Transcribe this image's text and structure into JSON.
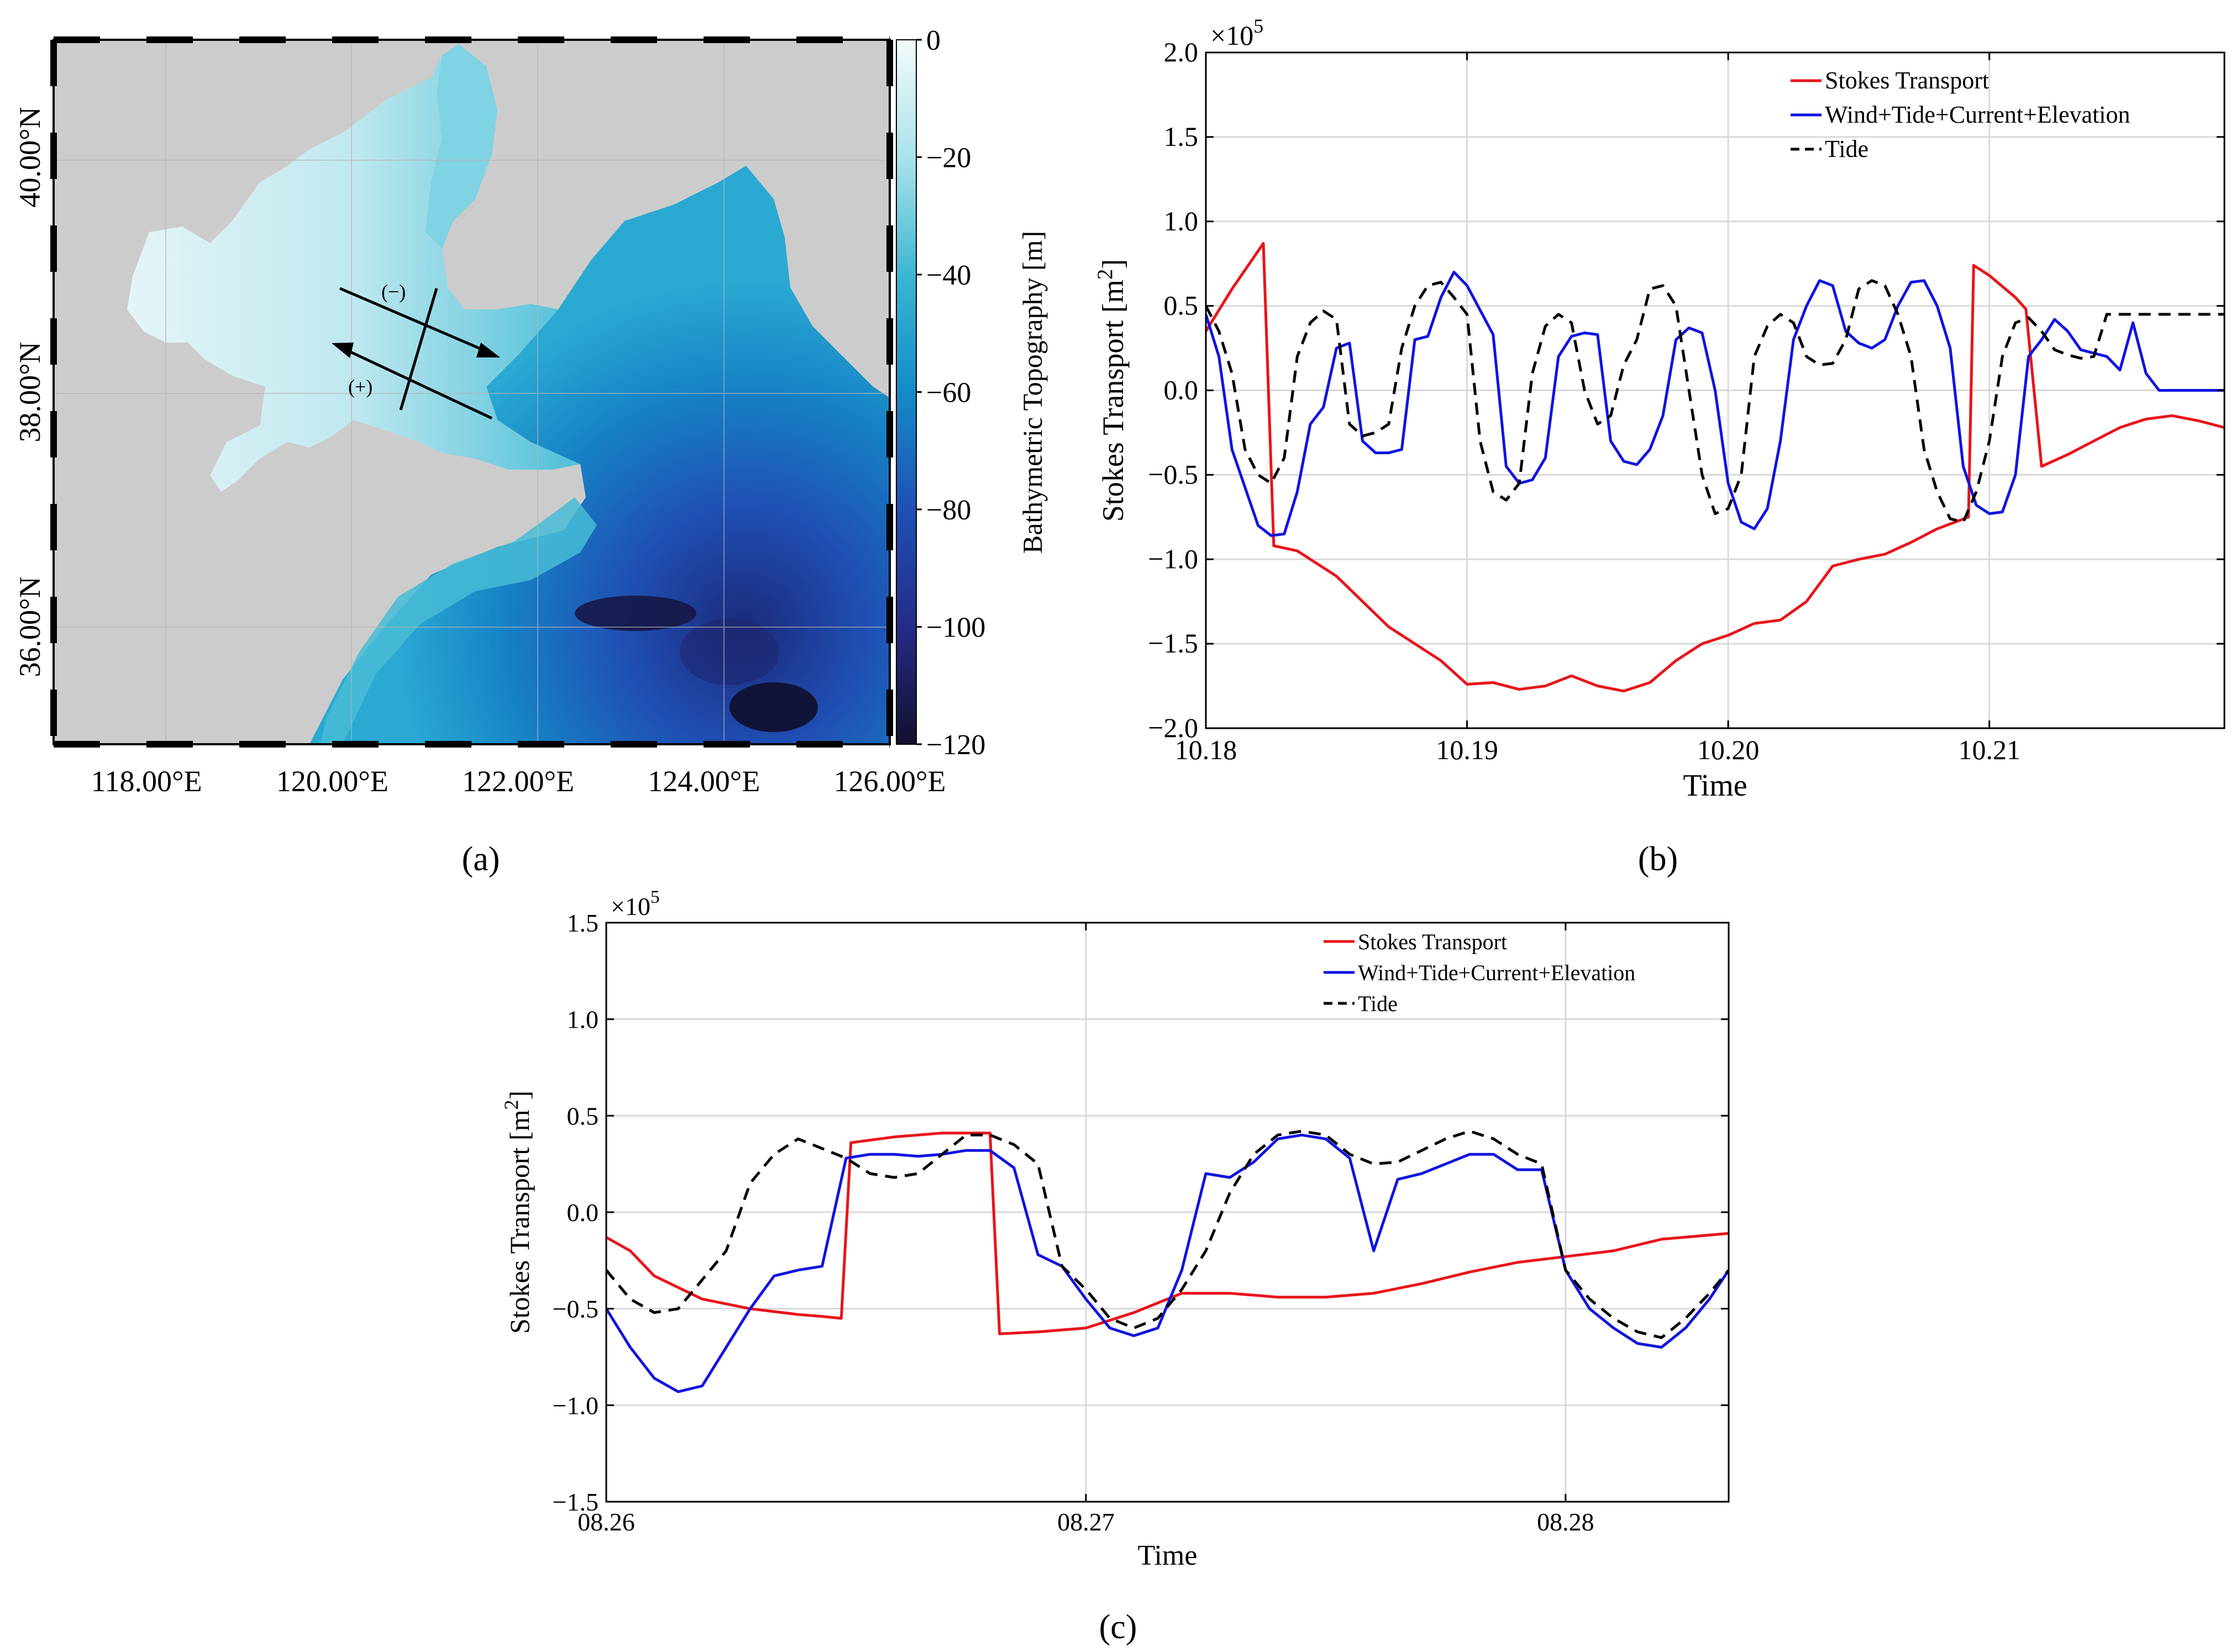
{
  "panel_labels": [
    "(a)",
    "(b)",
    "(c)"
  ],
  "chart_data": [
    {
      "type": "heatmap",
      "panel": "(a)",
      "title": "",
      "colorbar_label": "Bathymetric Topography [m]",
      "colorbar_ticks": [
        0,
        -20,
        -40,
        -60,
        -80,
        -100,
        -120
      ],
      "colorbar_tick_labels": [
        "0",
        "−20",
        "−40",
        "−60",
        "−80",
        "−100",
        "−120"
      ],
      "colorbar_range": [
        -120,
        0
      ],
      "x_tick_labels": [
        "118.00°E",
        "120.00°E",
        "122.00°E",
        "124.00°E",
        "126.00°E"
      ],
      "x_ticks": [
        118,
        120,
        122,
        124,
        126
      ],
      "xlim": [
        117,
        126
      ],
      "y_tick_labels": [
        "36.00°N",
        "38.00°N",
        "40.00°N"
      ],
      "y_ticks": [
        36,
        38,
        40
      ],
      "ylim": [
        35,
        41
      ],
      "section_signs": [
        "(−)",
        "(+)"
      ],
      "land_color": "#cccccc",
      "colormap": [
        "#f2fbfb",
        "#a8e2ea",
        "#39b5d1",
        "#158bc6",
        "#1f4fb4",
        "#242b84",
        "#120f2e"
      ]
    },
    {
      "type": "line",
      "panel": "(b)",
      "xlabel": "Time",
      "ylabel": "Stokes Transport [m",
      "ylabel_sup": "2",
      "ylabel_close": "]",
      "multiplier": "×10",
      "multiplier_exp": "5",
      "xlim": [
        10.18,
        10.219
      ],
      "ylim": [
        -2.0,
        2.0
      ],
      "x_ticks": [
        10.18,
        10.19,
        10.2,
        10.21
      ],
      "x_tick_labels": [
        "10.18",
        "10.19",
        "10.20",
        "10.21"
      ],
      "y_ticks": [
        -2.0,
        -1.5,
        -1.0,
        -0.5,
        0.0,
        0.5,
        1.0,
        1.5,
        2.0
      ],
      "y_tick_labels": [
        "−2.0",
        "−1.5",
        "−1.0",
        "−0.5",
        "0.0",
        "0.5",
        "1.0",
        "1.5",
        "2.0"
      ],
      "legend_position": "top-right",
      "series": [
        {
          "name": "Stokes Transport",
          "color": "#e8141a",
          "dash": "solid",
          "x": [
            10.18,
            10.181,
            10.1822,
            10.1826,
            10.1835,
            10.185,
            10.187,
            10.189,
            10.19,
            10.191,
            10.192,
            10.193,
            10.194,
            10.195,
            10.196,
            10.197,
            10.198,
            10.199,
            10.2,
            10.201,
            10.202,
            10.203,
            10.204,
            10.205,
            10.206,
            10.207,
            10.208,
            10.2092,
            10.2094,
            10.21,
            10.211,
            10.2114,
            10.212,
            10.213,
            10.214,
            10.215,
            10.216,
            10.217,
            10.218,
            10.219
          ],
          "y": [
            0.35,
            0.6,
            0.87,
            -0.92,
            -0.95,
            -1.1,
            -1.4,
            -1.6,
            -1.74,
            -1.73,
            -1.77,
            -1.75,
            -1.69,
            -1.75,
            -1.78,
            -1.73,
            -1.6,
            -1.5,
            -1.45,
            -1.38,
            -1.36,
            -1.25,
            -1.04,
            -1.0,
            -0.97,
            -0.9,
            -0.82,
            -0.75,
            0.74,
            0.68,
            0.55,
            0.48,
            -0.45,
            -0.38,
            -0.3,
            -0.22,
            -0.17,
            -0.15,
            -0.18,
            -0.22
          ]
        },
        {
          "name": "Wind+Tide+Current+Elevation",
          "color": "#1014e0",
          "dash": "solid",
          "x": [
            10.18,
            10.1805,
            10.181,
            10.182,
            10.1825,
            10.183,
            10.1835,
            10.184,
            10.1845,
            10.185,
            10.1855,
            10.186,
            10.1865,
            10.187,
            10.1875,
            10.188,
            10.1885,
            10.189,
            10.1895,
            10.19,
            10.191,
            10.1915,
            10.192,
            10.1925,
            10.193,
            10.1935,
            10.194,
            10.1945,
            10.195,
            10.1955,
            10.196,
            10.1965,
            10.197,
            10.1975,
            10.198,
            10.1985,
            10.199,
            10.1995,
            10.2,
            10.2005,
            10.201,
            10.2015,
            10.202,
            10.2025,
            10.203,
            10.2035,
            10.204,
            10.2045,
            10.205,
            10.2055,
            10.206,
            10.2065,
            10.207,
            10.2075,
            10.208,
            10.2085,
            10.209,
            10.2095,
            10.21,
            10.2105,
            10.211,
            10.2115,
            10.212,
            10.2125,
            10.213,
            10.2135,
            10.214,
            10.2145,
            10.215,
            10.2155,
            10.216,
            10.2165,
            10.217,
            10.2175,
            10.218,
            10.2185,
            10.219
          ],
          "y": [
            0.45,
            0.2,
            -0.35,
            -0.8,
            -0.86,
            -0.85,
            -0.6,
            -0.2,
            -0.1,
            0.25,
            0.28,
            -0.3,
            -0.37,
            -0.37,
            -0.35,
            0.3,
            0.32,
            0.55,
            0.7,
            0.62,
            0.33,
            -0.45,
            -0.55,
            -0.53,
            -0.4,
            0.2,
            0.32,
            0.34,
            0.33,
            -0.3,
            -0.42,
            -0.44,
            -0.35,
            -0.15,
            0.3,
            0.37,
            0.34,
            0.0,
            -0.55,
            -0.78,
            -0.82,
            -0.7,
            -0.3,
            0.3,
            0.5,
            0.65,
            0.62,
            0.35,
            0.28,
            0.25,
            0.3,
            0.5,
            0.64,
            0.65,
            0.5,
            0.25,
            -0.45,
            -0.68,
            -0.73,
            -0.72,
            -0.5,
            0.2,
            0.3,
            0.42,
            0.35,
            0.24,
            0.22,
            0.2,
            0.12,
            0.4,
            0.1,
            0.0,
            0.0,
            0.0,
            0.0,
            0.0,
            0.0
          ]
        },
        {
          "name": "Tide",
          "color": "#000000",
          "dash": "dashed",
          "x": [
            10.18,
            10.1805,
            10.181,
            10.1815,
            10.182,
            10.1825,
            10.183,
            10.1835,
            10.184,
            10.1845,
            10.185,
            10.1855,
            10.186,
            10.1865,
            10.187,
            10.1875,
            10.188,
            10.1885,
            10.189,
            10.1895,
            10.19,
            10.1905,
            10.191,
            10.1915,
            10.192,
            10.1925,
            10.193,
            10.1935,
            10.194,
            10.1945,
            10.195,
            10.1955,
            10.196,
            10.1965,
            10.197,
            10.1975,
            10.198,
            10.1985,
            10.199,
            10.1995,
            10.2,
            10.2005,
            10.201,
            10.2015,
            10.202,
            10.2025,
            10.203,
            10.2035,
            10.204,
            10.2045,
            10.205,
            10.2055,
            10.206,
            10.2065,
            10.207,
            10.2075,
            10.208,
            10.2085,
            10.209,
            10.2095,
            10.21,
            10.2105,
            10.211,
            10.2115,
            10.212,
            10.2125,
            10.213,
            10.2135,
            10.214,
            10.2145,
            10.215,
            10.2155,
            10.216,
            10.2165,
            10.217,
            10.2175,
            10.218,
            10.2185,
            10.219
          ],
          "y": [
            0.5,
            0.35,
            0.1,
            -0.35,
            -0.5,
            -0.55,
            -0.4,
            0.2,
            0.4,
            0.47,
            0.42,
            -0.2,
            -0.27,
            -0.25,
            -0.2,
            0.25,
            0.5,
            0.62,
            0.64,
            0.55,
            0.45,
            -0.3,
            -0.6,
            -0.65,
            -0.55,
            0.1,
            0.38,
            0.45,
            0.4,
            0.0,
            -0.2,
            -0.15,
            0.15,
            0.3,
            0.6,
            0.62,
            0.5,
            0.0,
            -0.5,
            -0.73,
            -0.7,
            -0.5,
            0.2,
            0.38,
            0.45,
            0.4,
            0.2,
            0.15,
            0.16,
            0.3,
            0.6,
            0.65,
            0.62,
            0.45,
            0.2,
            -0.35,
            -0.6,
            -0.76,
            -0.78,
            -0.6,
            -0.3,
            0.2,
            0.4,
            0.43,
            0.35,
            0.24,
            0.21,
            0.19,
            0.2,
            0.45,
            0.45,
            0.45,
            0.45,
            0.45,
            0.45,
            0.45,
            0.45,
            0.45,
            0.45
          ]
        }
      ]
    },
    {
      "type": "line",
      "panel": "(c)",
      "xlabel": "Time",
      "ylabel": "Stokes Transport [m",
      "ylabel_sup": "2",
      "ylabel_close": "]",
      "multiplier": "×10",
      "multiplier_exp": "5",
      "xlim": [
        8.26,
        8.2834
      ],
      "ylim": [
        -1.5,
        1.5
      ],
      "x_ticks": [
        8.26,
        8.27,
        8.28
      ],
      "x_tick_labels": [
        "08.26",
        "08.27",
        "08.28"
      ],
      "y_ticks": [
        -1.5,
        -1.0,
        -0.5,
        0.0,
        0.5,
        1.0,
        1.5
      ],
      "y_tick_labels": [
        "−1.5",
        "−1.0",
        "−0.5",
        "0.0",
        "0.5",
        "1.0",
        "1.5"
      ],
      "legend_position": "top-right",
      "series": [
        {
          "name": "Stokes Transport",
          "color": "#e8141a",
          "dash": "solid",
          "x": [
            8.26,
            8.2605,
            8.261,
            8.262,
            8.263,
            8.264,
            8.2645,
            8.2649,
            8.2651,
            8.266,
            8.267,
            8.268,
            8.2682,
            8.269,
            8.27,
            8.271,
            8.272,
            8.273,
            8.274,
            8.275,
            8.276,
            8.277,
            8.278,
            8.279,
            8.28,
            8.281,
            8.282,
            8.2834
          ],
          "y": [
            -0.13,
            -0.2,
            -0.33,
            -0.45,
            -0.5,
            -0.53,
            -0.54,
            -0.55,
            0.36,
            0.39,
            0.41,
            0.41,
            -0.63,
            -0.62,
            -0.6,
            -0.52,
            -0.42,
            -0.42,
            -0.44,
            -0.44,
            -0.42,
            -0.37,
            -0.31,
            -0.26,
            -0.23,
            -0.2,
            -0.14,
            -0.11
          ]
        },
        {
          "name": "Wind+Tide+Current+Elevation",
          "color": "#1014e0",
          "dash": "solid",
          "x": [
            8.26,
            8.2605,
            8.261,
            8.2615,
            8.262,
            8.2625,
            8.263,
            8.2635,
            8.264,
            8.2645,
            8.265,
            8.2655,
            8.266,
            8.2665,
            8.267,
            8.2675,
            8.268,
            8.2685,
            8.269,
            8.2695,
            8.27,
            8.2705,
            8.271,
            8.2715,
            8.272,
            8.2725,
            8.273,
            8.2735,
            8.274,
            8.2745,
            8.275,
            8.2755,
            8.276,
            8.2765,
            8.277,
            8.2775,
            8.278,
            8.2785,
            8.279,
            8.2795,
            8.28,
            8.2805,
            8.281,
            8.2815,
            8.282,
            8.2825,
            8.283,
            8.2834
          ],
          "y": [
            -0.5,
            -0.7,
            -0.86,
            -0.93,
            -0.9,
            -0.7,
            -0.5,
            -0.33,
            -0.3,
            -0.28,
            0.28,
            0.3,
            0.3,
            0.29,
            0.3,
            0.32,
            0.32,
            0.23,
            -0.22,
            -0.28,
            -0.45,
            -0.6,
            -0.64,
            -0.6,
            -0.3,
            0.2,
            0.18,
            0.26,
            0.38,
            0.4,
            0.38,
            0.28,
            -0.2,
            0.17,
            0.2,
            0.25,
            0.3,
            0.3,
            0.22,
            0.22,
            -0.3,
            -0.5,
            -0.6,
            -0.68,
            -0.7,
            -0.6,
            -0.45,
            -0.3
          ]
        },
        {
          "name": "Tide",
          "color": "#000000",
          "dash": "dashed",
          "x": [
            8.26,
            8.2605,
            8.261,
            8.2615,
            8.262,
            8.2625,
            8.263,
            8.2635,
            8.264,
            8.2645,
            8.265,
            8.2655,
            8.266,
            8.2665,
            8.267,
            8.2675,
            8.268,
            8.2685,
            8.269,
            8.2695,
            8.27,
            8.2705,
            8.271,
            8.2715,
            8.272,
            8.2725,
            8.273,
            8.2735,
            8.274,
            8.2745,
            8.275,
            8.2755,
            8.276,
            8.2765,
            8.277,
            8.2775,
            8.278,
            8.2785,
            8.279,
            8.2795,
            8.28,
            8.2805,
            8.281,
            8.2815,
            8.282,
            8.2825,
            8.283,
            8.2834
          ],
          "y": [
            -0.3,
            -0.45,
            -0.52,
            -0.5,
            -0.35,
            -0.2,
            0.15,
            0.3,
            0.38,
            0.33,
            0.28,
            0.2,
            0.18,
            0.2,
            0.3,
            0.4,
            0.4,
            0.35,
            0.25,
            -0.28,
            -0.4,
            -0.55,
            -0.6,
            -0.55,
            -0.4,
            -0.2,
            0.1,
            0.3,
            0.4,
            0.42,
            0.4,
            0.3,
            0.25,
            0.26,
            0.32,
            0.38,
            0.42,
            0.38,
            0.3,
            0.25,
            -0.3,
            -0.45,
            -0.55,
            -0.62,
            -0.65,
            -0.55,
            -0.42,
            -0.3
          ]
        }
      ]
    }
  ]
}
